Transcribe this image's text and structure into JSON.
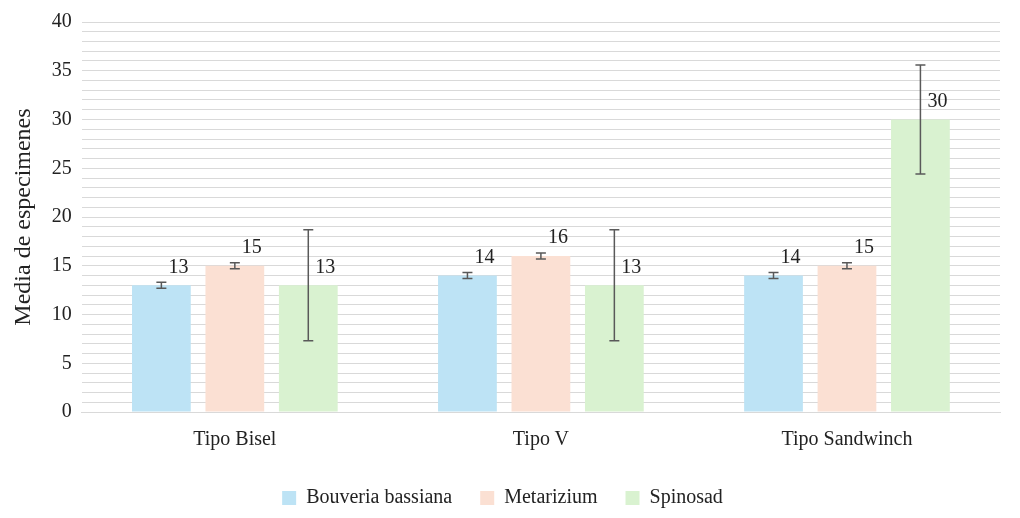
{
  "chart_data": {
    "type": "bar",
    "ylabel": "Media de especimenes",
    "categories": [
      "Tipo Bisel",
      "Tipo V",
      "Tipo Sandwinch"
    ],
    "series": [
      {
        "name": "Bouveria bassiana",
        "color": "#bde3f5",
        "values": [
          13,
          14,
          14
        ],
        "errors": [
          0.3,
          0.3,
          0.3
        ]
      },
      {
        "name": "Metarizium",
        "color": "#fbe0d3",
        "values": [
          15,
          16,
          15
        ],
        "errors": [
          0.3,
          0.3,
          0.3
        ]
      },
      {
        "name": "Spinosad",
        "color": "#d9f2d0",
        "values": [
          13,
          13,
          30
        ],
        "errors": [
          5.7,
          5.7,
          5.6
        ]
      }
    ],
    "ylim": [
      0,
      40
    ],
    "yticks": [
      0,
      {
        "value": 1,
        "label": null
      },
      {
        "value": 2,
        "label": null
      },
      {
        "value": 3,
        "label": null
      },
      {
        "value": 4,
        "label": null
      },
      5,
      {
        "value": 6,
        "label": null
      },
      {
        "value": 7,
        "label": null
      },
      {
        "value": 8,
        "label": null
      },
      {
        "value": 9,
        "label": null
      },
      10,
      {
        "value": 11,
        "label": null
      },
      {
        "value": 12,
        "label": null
      },
      {
        "value": 13,
        "label": null
      },
      {
        "value": 14,
        "label": null
      },
      15,
      {
        "value": 16,
        "label": null
      },
      {
        "value": 17,
        "label": null
      },
      {
        "value": 18,
        "label": null
      },
      {
        "value": 19,
        "label": null
      },
      20,
      {
        "value": 21,
        "label": null
      },
      {
        "value": 22,
        "label": null
      },
      {
        "value": 23,
        "label": null
      },
      {
        "value": 24,
        "label": null
      },
      25,
      {
        "value": 26,
        "label": null
      },
      {
        "value": 27,
        "label": null
      },
      {
        "value": 28,
        "label": null
      },
      {
        "value": 29,
        "label": null
      },
      30,
      {
        "value": 31,
        "label": null
      },
      {
        "value": 32,
        "label": null
      },
      {
        "value": 33,
        "label": null
      },
      {
        "value": 34,
        "label": null
      },
      35,
      {
        "value": 36,
        "label": null
      },
      {
        "value": 37,
        "label": null
      },
      {
        "value": 38,
        "label": null
      },
      {
        "value": 39,
        "label": null
      },
      40
    ],
    "grid": "y",
    "legend": "bottom",
    "data_labels": true
  }
}
